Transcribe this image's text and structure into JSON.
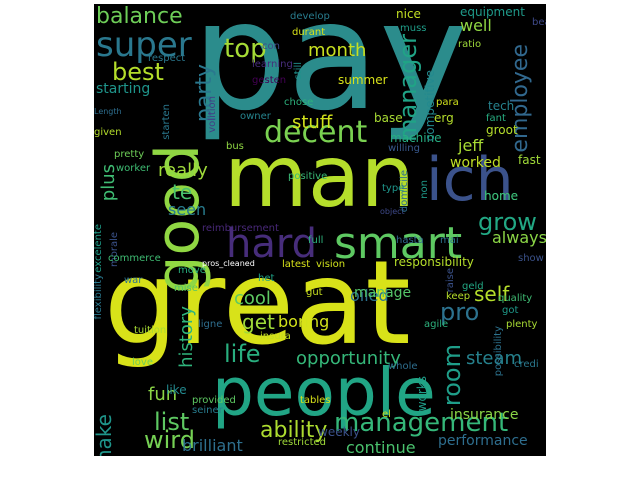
{
  "figure": {
    "kind": "word cloud",
    "background": "#000000",
    "colormap": "viridis"
  },
  "words": [
    {
      "text": "pay",
      "color": "#2b8c8c"
    },
    {
      "text": "great",
      "color": "#d8e219"
    },
    {
      "text": "man",
      "color": "#b5de2b"
    },
    {
      "text": "people",
      "color": "#21a585"
    },
    {
      "text": "good",
      "color": "#90d743"
    },
    {
      "text": "ich",
      "color": "#3b528b"
    },
    {
      "text": "smart",
      "color": "#5ec962"
    },
    {
      "text": "hard",
      "color": "#472d7b"
    },
    {
      "text": "decent",
      "color": "#7ad151"
    },
    {
      "text": "super",
      "color": "#2a788e"
    },
    {
      "text": "management",
      "color": "#35b779"
    },
    {
      "text": "balance",
      "color": "#6ece58"
    },
    {
      "text": "top",
      "color": "#a5db36"
    },
    {
      "text": "best",
      "color": "#b5de2b"
    },
    {
      "text": "party",
      "color": "#2a788e"
    },
    {
      "text": "manager",
      "color": "#20a386"
    },
    {
      "text": "employee",
      "color": "#31688e"
    },
    {
      "text": "grow",
      "color": "#22a884"
    },
    {
      "text": "life",
      "color": "#29af7f"
    },
    {
      "text": "ability",
      "color": "#addc30"
    },
    {
      "text": "list",
      "color": "#5ec962"
    },
    {
      "text": "wird",
      "color": "#75d054"
    },
    {
      "text": "pro",
      "color": "#2c728e"
    },
    {
      "text": "room",
      "color": "#1f9e89"
    },
    {
      "text": "month",
      "color": "#c8e020"
    },
    {
      "text": "stuff",
      "color": "#d2e21b"
    },
    {
      "text": "really",
      "color": "#9fda3a"
    },
    {
      "text": "plus",
      "color": "#3fbc73"
    },
    {
      "text": "te",
      "color": "#4ac16d"
    },
    {
      "text": "seen",
      "color": "#287c8e"
    },
    {
      "text": "get",
      "color": "#a0da39"
    },
    {
      "text": "cool",
      "color": "#5ec962"
    },
    {
      "text": "self",
      "color": "#b5de2b"
    },
    {
      "text": "opportunity",
      "color": "#35b779"
    },
    {
      "text": "history",
      "color": "#2fb47c"
    },
    {
      "text": "steam",
      "color": "#26828e"
    },
    {
      "text": "fun",
      "color": "#8bd646"
    },
    {
      "text": "make",
      "color": "#1f968b"
    },
    {
      "text": "brilliant",
      "color": "#2e6f8e"
    },
    {
      "text": "continue",
      "color": "#4ac16d"
    },
    {
      "text": "jeff",
      "color": "#a8db34"
    },
    {
      "text": "boring",
      "color": "#d2e21b"
    },
    {
      "text": "worked",
      "color": "#c0df25"
    },
    {
      "text": "always",
      "color": "#8bd646"
    },
    {
      "text": "oiled",
      "color": "#2c728e"
    },
    {
      "text": "starting",
      "color": "#1f958b"
    },
    {
      "text": "machine",
      "color": "#27ad81"
    },
    {
      "text": "competitive",
      "color": "#23898e"
    },
    {
      "text": "well",
      "color": "#90d743"
    },
    {
      "text": "performance",
      "color": "#2e6e8e"
    },
    {
      "text": "insurance",
      "color": "#8bd646"
    },
    {
      "text": "weekly",
      "color": "#3b528b"
    },
    {
      "text": "responsibility",
      "color": "#b5de2b"
    },
    {
      "text": "manage",
      "color": "#54c568"
    },
    {
      "text": "latest",
      "color": "#d8e219"
    },
    {
      "text": "vision",
      "color": "#d0e11c"
    },
    {
      "text": "home",
      "color": "#3aba76"
    },
    {
      "text": "full",
      "color": "#2db27d"
    },
    {
      "text": "fast",
      "color": "#a0da39"
    },
    {
      "text": "tech",
      "color": "#26828e"
    },
    {
      "text": "fant",
      "color": "#27ad81"
    },
    {
      "text": "groot",
      "color": "#b5de2b"
    },
    {
      "text": "ratio",
      "color": "#9fda3a"
    },
    {
      "text": "nice",
      "color": "#c2df23"
    },
    {
      "text": "equipment",
      "color": "#1f9a8a"
    },
    {
      "text": "summer",
      "color": "#d8e219"
    },
    {
      "text": "base",
      "color": "#a8db34"
    },
    {
      "text": "erg",
      "color": "#b5de2b"
    },
    {
      "text": "para",
      "color": "#d0e11c"
    },
    {
      "text": "respect",
      "color": "#2a788e"
    },
    {
      "text": "develop",
      "color": "#287c8e"
    },
    {
      "text": "durant",
      "color": "#d8e219"
    },
    {
      "text": "muss",
      "color": "#1f9e89"
    },
    {
      "text": "beau",
      "color": "#3e4989"
    },
    {
      "text": "still",
      "color": "#21918c"
    },
    {
      "text": "chose",
      "color": "#2db27d"
    },
    {
      "text": "owner",
      "color": "#25848e"
    },
    {
      "text": "gesten",
      "color": "#440154"
    },
    {
      "text": "learning",
      "color": "#472d7b"
    },
    {
      "text": "con",
      "color": "#3e4a89"
    },
    {
      "text": "given",
      "color": "#b5de2b"
    },
    {
      "text": "pretty",
      "color": "#6ece58"
    },
    {
      "text": "worker",
      "color": "#3fbc73"
    },
    {
      "text": "bus",
      "color": "#90d743"
    },
    {
      "text": "willing",
      "color": "#38588c"
    },
    {
      "text": "positive",
      "color": "#3aba76"
    },
    {
      "text": "type",
      "color": "#1f968b"
    },
    {
      "text": "object",
      "color": "#3e4989"
    },
    {
      "text": "domicile",
      "color": "#2e6e8e"
    },
    {
      "text": "hasta",
      "color": "#31688e"
    },
    {
      "text": "mai",
      "color": "#2c728e"
    },
    {
      "text": "non",
      "color": "#1f9a8a"
    },
    {
      "text": "starten",
      "color": "#2a788e"
    },
    {
      "text": "volition",
      "color": "#433e85"
    },
    {
      "text": "Length",
      "color": "#2e6e8e"
    },
    {
      "text": "excelente",
      "color": "#1f9e89"
    },
    {
      "text": "home",
      "color": "#3aba76"
    },
    {
      "text": "morale",
      "color": "#3b528b"
    },
    {
      "text": "commerce",
      "color": "#3fbc73"
    },
    {
      "text": "reimbursement",
      "color": "#482878"
    },
    {
      "text": "pros_cleaned",
      "color": "#ffffff"
    },
    {
      "text": "move",
      "color": "#29af7f"
    },
    {
      "text": "mise",
      "color": "#54c568"
    },
    {
      "text": "war",
      "color": "#2c728e"
    },
    {
      "text": "gut",
      "color": "#c8e020"
    },
    {
      "text": "het",
      "color": "#1fa187"
    },
    {
      "text": "flexibility",
      "color": "#2a788e"
    },
    {
      "text": "tuition",
      "color": "#a8db34"
    },
    {
      "text": "insura",
      "color": "#c2df23"
    },
    {
      "text": "ligne",
      "color": "#2e6e8e"
    },
    {
      "text": "love",
      "color": "#6ece58"
    },
    {
      "text": "like",
      "color": "#23898e"
    },
    {
      "text": "provided",
      "color": "#5ec962"
    },
    {
      "text": "seiner",
      "color": "#287c8e"
    },
    {
      "text": "tables",
      "color": "#d8e219"
    },
    {
      "text": "restricted",
      "color": "#a0da39"
    },
    {
      "text": "whole",
      "color": "#2e6e8e"
    },
    {
      "text": "works",
      "color": "#1f9e89"
    },
    {
      "text": "el",
      "color": "#c2df23"
    },
    {
      "text": "raise",
      "color": "#3b528b"
    },
    {
      "text": "geld",
      "color": "#22a884"
    },
    {
      "text": "keep",
      "color": "#b5de2b"
    },
    {
      "text": "show",
      "color": "#3b528b"
    },
    {
      "text": "quality",
      "color": "#3fbc73"
    },
    {
      "text": "got",
      "color": "#1f9a8a"
    },
    {
      "text": "plenty",
      "color": "#a8db34"
    },
    {
      "text": "agile",
      "color": "#2db27d"
    },
    {
      "text": "possibility",
      "color": "#2c728e"
    },
    {
      "text": "credi",
      "color": "#2a788e"
    }
  ]
}
